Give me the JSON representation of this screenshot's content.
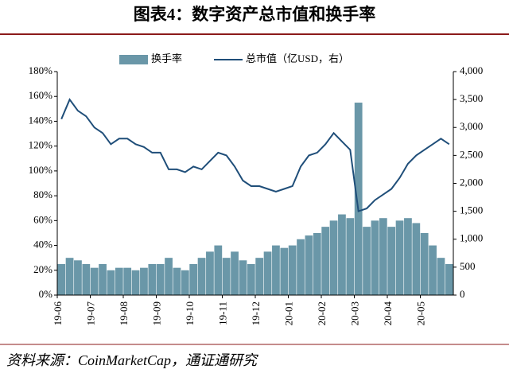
{
  "chart_data": {
    "type": "bar_line",
    "title": "图表4：数字资产总市值和换手率",
    "source": "资料来源：CoinMarketCap，通证通研究",
    "categories": [
      "19-06",
      null,
      null,
      null,
      "19-07",
      null,
      null,
      null,
      "19-08",
      null,
      null,
      null,
      "19-09",
      null,
      null,
      null,
      "19-10",
      null,
      null,
      null,
      "19-11",
      null,
      null,
      null,
      "19-12",
      null,
      null,
      null,
      "20-01",
      null,
      null,
      null,
      "20-02",
      null,
      null,
      null,
      "20-03",
      null,
      null,
      null,
      "20-04",
      null,
      null,
      null,
      "20-05",
      null,
      null,
      null
    ],
    "series": [
      {
        "name": "换手率",
        "color": "#6a97a8",
        "axis": "y",
        "kind": "bar",
        "values": [
          25,
          30,
          28,
          25,
          22,
          25,
          20,
          22,
          22,
          20,
          22,
          25,
          25,
          30,
          22,
          20,
          25,
          30,
          35,
          40,
          30,
          35,
          28,
          25,
          30,
          35,
          40,
          38,
          40,
          45,
          48,
          50,
          55,
          60,
          65,
          62,
          155,
          55,
          60,
          62,
          55,
          60,
          62,
          58,
          50,
          40,
          30,
          25
        ]
      },
      {
        "name": "总市值（亿USD，右）",
        "color": "#1f4e79",
        "axis": "y2",
        "kind": "line",
        "values": [
          3150,
          3500,
          3300,
          3200,
          3000,
          2900,
          2700,
          2800,
          2800,
          2700,
          2650,
          2550,
          2550,
          2250,
          2250,
          2200,
          2300,
          2250,
          2400,
          2550,
          2500,
          2300,
          2050,
          1950,
          1950,
          1900,
          1850,
          1900,
          1950,
          2300,
          2500,
          2550,
          2700,
          2900,
          2750,
          2600,
          1500,
          1550,
          1700,
          1800,
          1900,
          2100,
          2350,
          2500,
          2600,
          2700,
          2800,
          2700
        ]
      }
    ],
    "ylim": [
      0,
      180
    ],
    "yticks": [
      {
        "value": 0,
        "label": "0%"
      },
      {
        "value": 20,
        "label": "20%"
      },
      {
        "value": 40,
        "label": "40%"
      },
      {
        "value": 60,
        "label": "60%"
      },
      {
        "value": 80,
        "label": "80%"
      },
      {
        "value": 100,
        "label": "100%"
      },
      {
        "value": 120,
        "label": "120%"
      },
      {
        "value": 140,
        "label": "140%"
      },
      {
        "value": 160,
        "label": "160%"
      },
      {
        "value": 180,
        "label": "180%"
      }
    ],
    "y2lim": [
      0,
      4000
    ],
    "y2ticks": [
      0,
      500,
      {
        "value": 1000,
        "label": "1,000"
      },
      {
        "value": 1500,
        "label": "1,500"
      },
      {
        "value": 2000,
        "label": "2,000"
      },
      {
        "value": 2500,
        "label": "2,500"
      },
      {
        "value": 3000,
        "label": "3,000"
      },
      {
        "value": 3500,
        "label": "3,500"
      },
      {
        "value": 4000,
        "label": "4,000"
      }
    ],
    "legend": "top"
  }
}
